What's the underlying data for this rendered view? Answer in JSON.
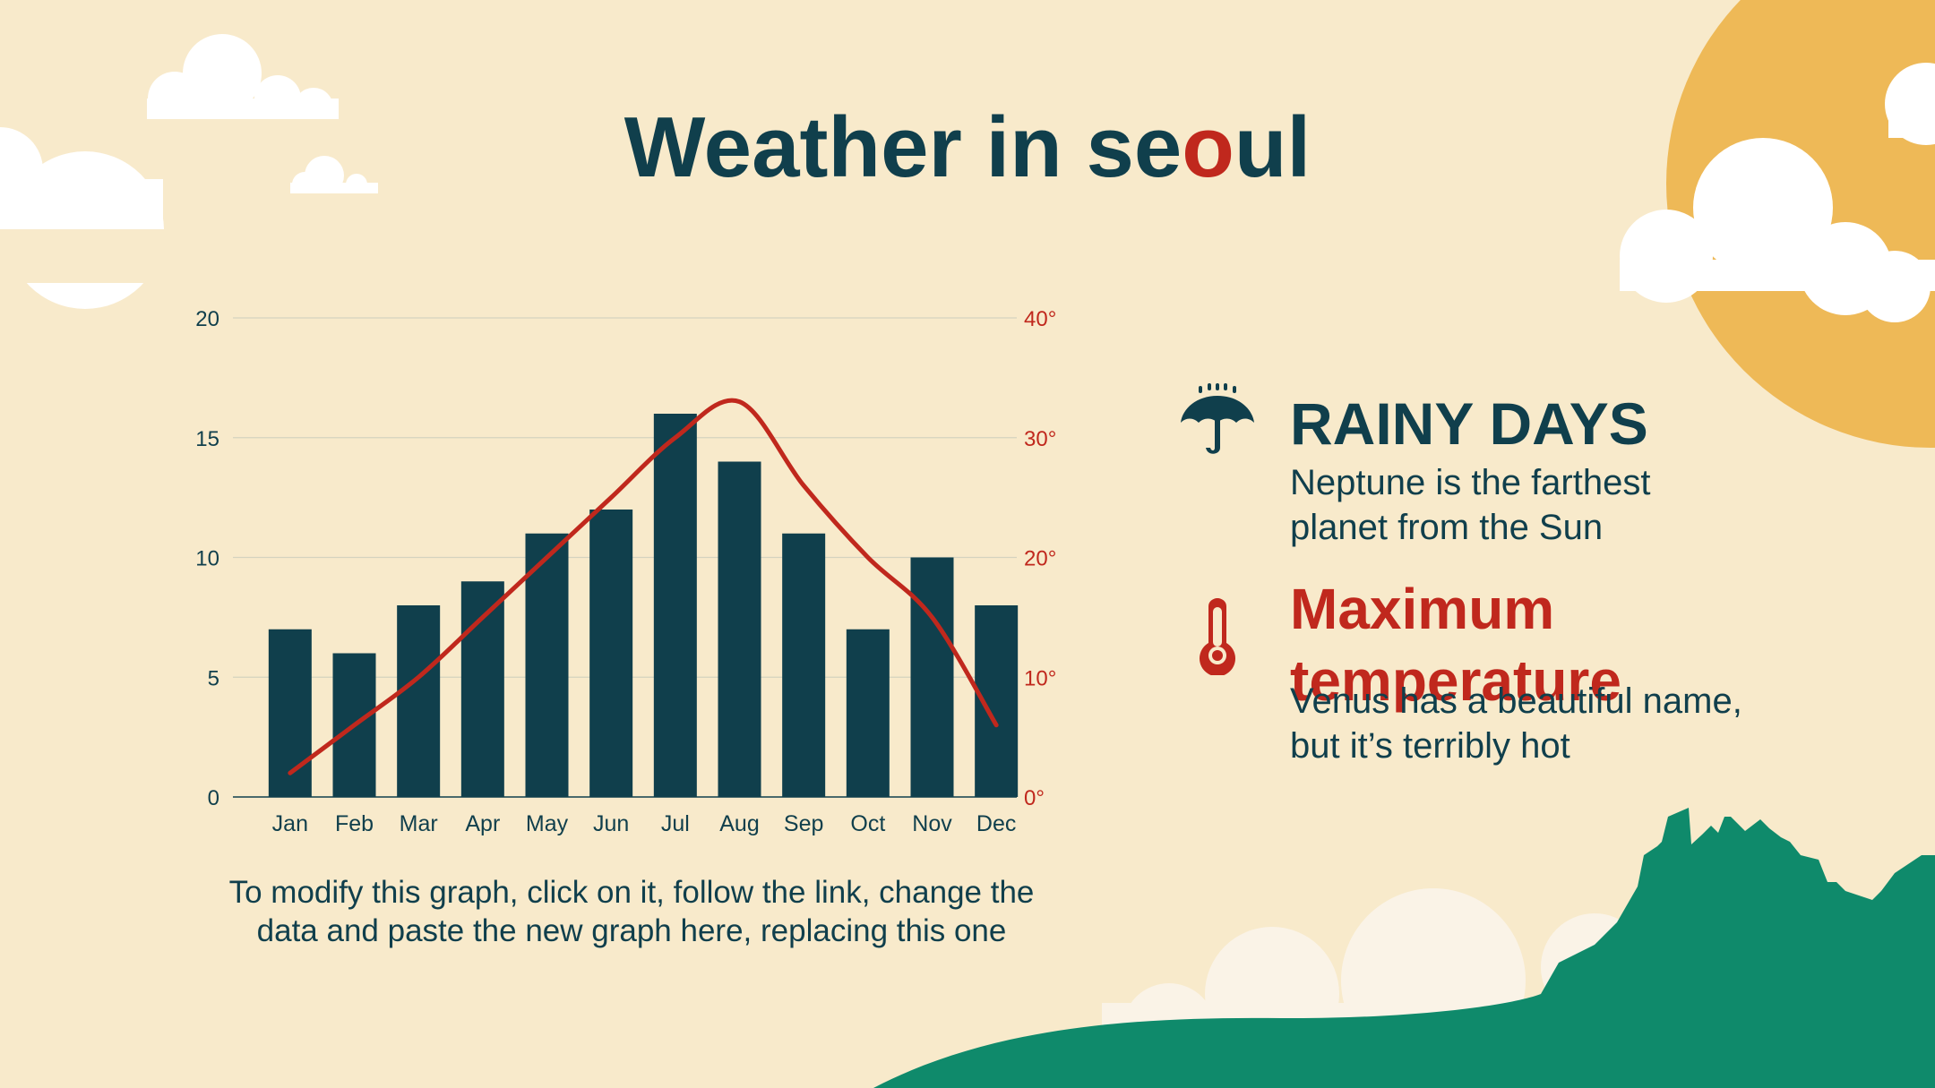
{
  "title": {
    "main": "Weather in se",
    "accent": "o",
    "rest": "ul"
  },
  "colors": {
    "background": "#f8eacb",
    "navy": "#103f4c",
    "red": "#c0281d",
    "sun": "#eeb957",
    "hill": "#0f8a6b",
    "cloud": "#ffffff",
    "grid": "#d5d3bf"
  },
  "chart_data": {
    "type": "bar",
    "categories": [
      "Jan",
      "Feb",
      "Mar",
      "Apr",
      "May",
      "Jun",
      "Jul",
      "Aug",
      "Sep",
      "Oct",
      "Nov",
      "Dec"
    ],
    "series": [
      {
        "values": [
          7,
          6,
          8,
          9,
          11,
          12,
          16,
          14,
          11,
          7,
          10,
          8
        ],
        "axis": "left",
        "kind": "bar",
        "color": "#103f4c"
      },
      {
        "values": [
          2,
          6,
          10,
          15,
          20,
          25,
          30,
          33,
          26,
          20,
          15,
          6
        ],
        "axis": "right",
        "kind": "line",
        "color": "#c0281d"
      }
    ],
    "ylim": [
      0,
      20
    ],
    "yticks": [
      "0",
      "5",
      "10",
      "15",
      "20"
    ],
    "y2lim": [
      0,
      40
    ],
    "y2ticks": [
      "0°",
      "10°",
      "20°",
      "30°",
      "40°"
    ],
    "grid": true
  },
  "chart_note": [
    "To modify this graph, click on it, follow the link, change the",
    "data and paste the new graph here, replacing this one"
  ],
  "rainy": {
    "heading": "RAINY DAYS",
    "body": [
      "Neptune is the farthest",
      "planet from the Sun"
    ],
    "icon": "umbrella-icon"
  },
  "maxtemp": {
    "heading": [
      "Maximum",
      "temperature"
    ],
    "body": [
      "Venus has a beautiful name,",
      "but it’s terribly hot"
    ],
    "icon": "thermometer-icon"
  }
}
